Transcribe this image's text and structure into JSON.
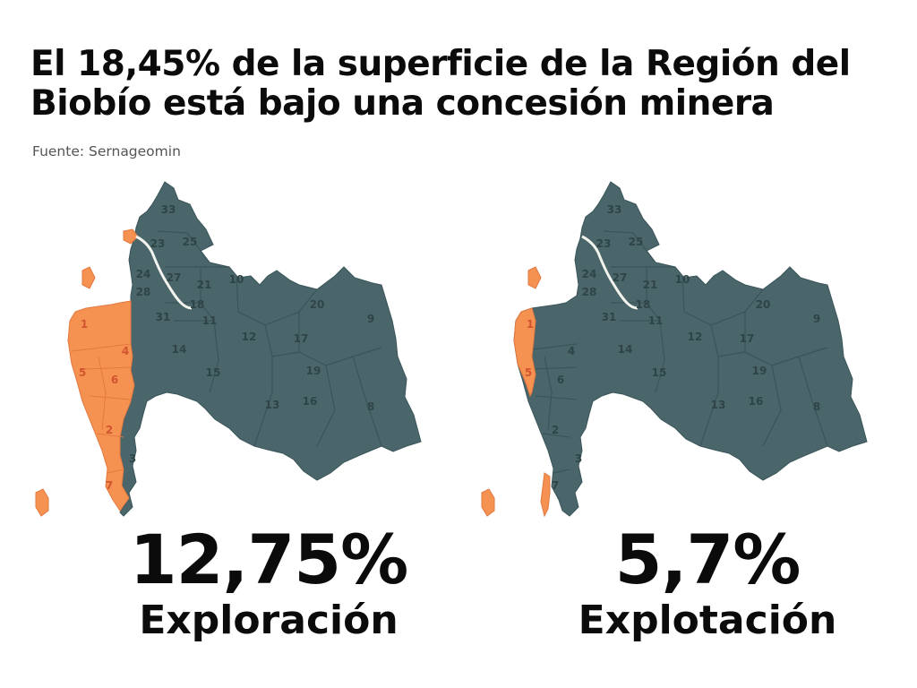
{
  "header": {
    "title_line1": "El 18,45% de la superficie de la Región del",
    "title_line2": "Biobío está bajo una concesión minera",
    "source": "Fuente: Sernageomin"
  },
  "colors": {
    "concession": "#f59251",
    "territory": "#4a666b",
    "river": "#f3f3ee",
    "border": "#3a5559"
  },
  "panels": [
    {
      "value": "12,75%",
      "label": "Exploración",
      "concession_coverage": "coastal communes 1–7 (orange)"
    },
    {
      "value": "5,7%",
      "label": "Explotación",
      "concession_coverage": "narrow coastal strip (orange)"
    }
  ],
  "commune_labels": [
    "33",
    "25",
    "23",
    "24",
    "27",
    "21",
    "10",
    "28",
    "18",
    "31",
    "11",
    "20",
    "9",
    "1",
    "4",
    "14",
    "12",
    "17",
    "5",
    "6",
    "15",
    "19",
    "13",
    "16",
    "8",
    "2",
    "3",
    "7"
  ]
}
